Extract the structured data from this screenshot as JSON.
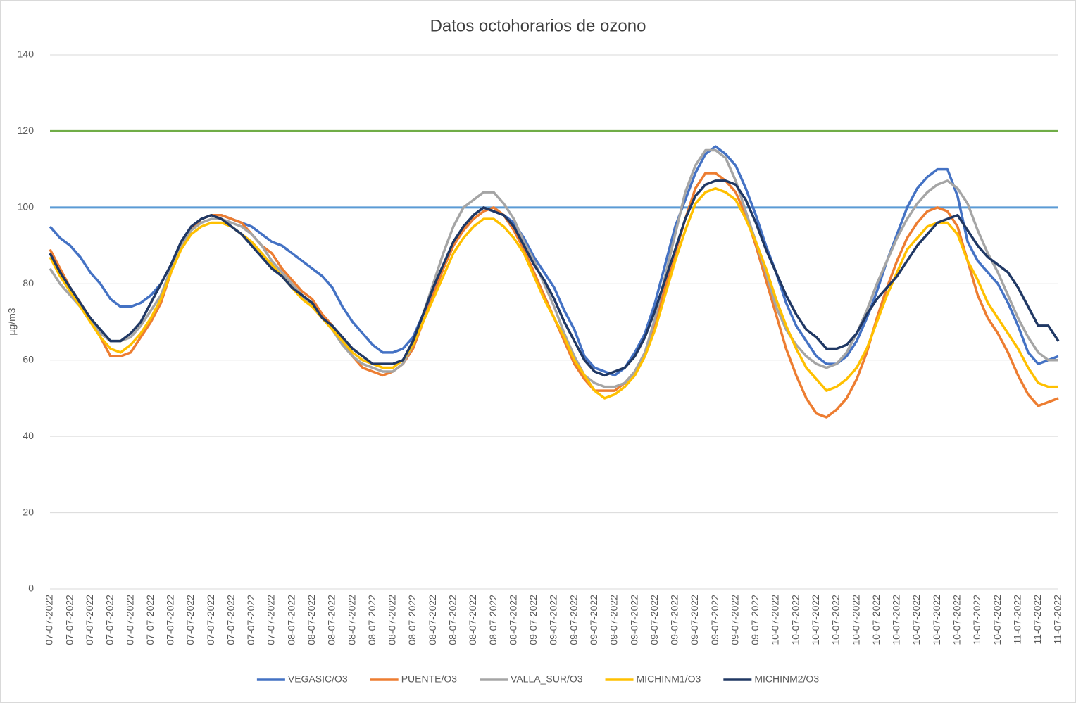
{
  "chart_data": {
    "type": "line",
    "title": "Datos octohorarios de ozono",
    "y_label": "µg/m3",
    "categories": [
      "07-07-2022",
      null,
      "07-07-2022",
      null,
      "07-07-2022",
      null,
      "07-07-2022",
      null,
      "07-07-2022",
      null,
      "07-07-2022",
      null,
      "07-07-2022",
      null,
      "07-07-2022",
      null,
      "07-07-2022",
      null,
      "07-07-2022",
      null,
      "07-07-2022",
      null,
      "07-07-2022",
      null,
      "08-07-2022",
      null,
      "08-07-2022",
      null,
      "08-07-2022",
      null,
      "08-07-2022",
      null,
      "08-07-2022",
      null,
      "08-07-2022",
      null,
      "08-07-2022",
      null,
      "08-07-2022",
      null,
      "08-07-2022",
      null,
      "08-07-2022",
      null,
      "08-07-2022",
      null,
      "08-07-2022",
      null,
      "09-07-2022",
      null,
      "09-07-2022",
      null,
      "09-07-2022",
      null,
      "09-07-2022",
      null,
      "09-07-2022",
      null,
      "09-07-2022",
      null,
      "09-07-2022",
      null,
      "09-07-2022",
      null,
      "09-07-2022",
      null,
      "09-07-2022",
      null,
      "09-07-2022",
      null,
      "09-07-2022",
      null,
      "10-07-2022",
      null,
      "10-07-2022",
      null,
      "10-07-2022",
      null,
      "10-07-2022",
      null,
      "10-07-2022",
      null,
      "10-07-2022",
      null,
      "10-07-2022",
      null,
      "10-07-2022",
      null,
      "10-07-2022",
      null,
      "10-07-2022",
      null,
      "10-07-2022",
      null,
      "10-07-2022",
      null,
      "11-07-2022",
      null,
      "11-07-2022",
      null,
      "11-07-2022"
    ],
    "series": [
      {
        "name": "VEGASIC/O3",
        "color": "#4472c4",
        "values": [
          95,
          92,
          90,
          87,
          83,
          80,
          76,
          74,
          74,
          75,
          77,
          80,
          85,
          91,
          95,
          97,
          98,
          98,
          97,
          96,
          95,
          93,
          91,
          90,
          88,
          86,
          84,
          82,
          79,
          74,
          70,
          67,
          64,
          62,
          62,
          63,
          66,
          72,
          78,
          84,
          90,
          95,
          98,
          100,
          99,
          98,
          96,
          92,
          87,
          83,
          79,
          73,
          68,
          61,
          58,
          57,
          56,
          58,
          62,
          67,
          75,
          85,
          95,
          102,
          109,
          114,
          116,
          114,
          111,
          105,
          98,
          90,
          83,
          75,
          69,
          65,
          61,
          59,
          59,
          61,
          65,
          71,
          78,
          86,
          93,
          100,
          105,
          108,
          110,
          110,
          103,
          91,
          86,
          83,
          80,
          75,
          69,
          62,
          59,
          60,
          61
        ]
      },
      {
        "name": "PUENTE/O3",
        "color": "#ed7d31",
        "values": [
          89,
          84,
          79,
          75,
          71,
          66,
          61,
          61,
          62,
          66,
          70,
          75,
          83,
          90,
          94,
          97,
          98,
          98,
          97,
          96,
          93,
          90,
          88,
          84,
          81,
          78,
          76,
          72,
          69,
          65,
          61,
          58,
          57,
          56,
          57,
          59,
          63,
          70,
          77,
          84,
          90,
          94,
          97,
          99,
          100,
          98,
          94,
          89,
          83,
          77,
          71,
          65,
          59,
          55,
          52,
          52,
          52,
          54,
          57,
          62,
          70,
          79,
          88,
          97,
          105,
          109,
          109,
          107,
          104,
          98,
          90,
          81,
          72,
          63,
          56,
          50,
          46,
          45,
          47,
          50,
          55,
          62,
          71,
          79,
          86,
          92,
          96,
          99,
          100,
          99,
          95,
          86,
          77,
          71,
          67,
          62,
          56,
          51,
          48,
          49,
          50
        ]
      },
      {
        "name": "VALLA_SUR/O3",
        "color": "#a5a5a5",
        "values": [
          84,
          80,
          77,
          74,
          71,
          67,
          65,
          65,
          66,
          69,
          73,
          77,
          84,
          90,
          94,
          96,
          97,
          97,
          96,
          95,
          93,
          90,
          86,
          83,
          80,
          77,
          74,
          71,
          68,
          64,
          61,
          59,
          58,
          57,
          57,
          59,
          64,
          72,
          80,
          88,
          95,
          100,
          102,
          104,
          104,
          101,
          97,
          91,
          86,
          80,
          74,
          67,
          61,
          56,
          54,
          53,
          53,
          54,
          57,
          62,
          71,
          82,
          93,
          104,
          111,
          115,
          115,
          113,
          107,
          99,
          91,
          83,
          74,
          68,
          64,
          61,
          59,
          58,
          59,
          62,
          67,
          73,
          80,
          86,
          92,
          97,
          101,
          104,
          106,
          107,
          105,
          101,
          94,
          88,
          83,
          77,
          71,
          66,
          62,
          60,
          60
        ]
      },
      {
        "name": "MICHINM1/O3",
        "color": "#ffc000",
        "values": [
          87,
          82,
          78,
          74,
          70,
          66,
          63,
          62,
          64,
          67,
          71,
          76,
          83,
          89,
          93,
          95,
          96,
          96,
          95,
          93,
          91,
          88,
          85,
          82,
          79,
          76,
          74,
          71,
          68,
          65,
          62,
          60,
          59,
          58,
          58,
          60,
          64,
          70,
          76,
          82,
          88,
          92,
          95,
          97,
          97,
          95,
          92,
          88,
          82,
          76,
          71,
          66,
          60,
          56,
          52,
          50,
          51,
          53,
          56,
          61,
          68,
          77,
          86,
          94,
          101,
          104,
          105,
          104,
          102,
          97,
          91,
          84,
          76,
          69,
          63,
          58,
          55,
          52,
          53,
          55,
          58,
          63,
          70,
          77,
          83,
          89,
          92,
          95,
          96,
          96,
          93,
          86,
          81,
          75,
          71,
          67,
          63,
          58,
          54,
          53,
          53
        ]
      },
      {
        "name": "MICHINM2/O3",
        "color": "#203864",
        "values": [
          88,
          83,
          79,
          75,
          71,
          68,
          65,
          65,
          67,
          70,
          75,
          80,
          85,
          91,
          95,
          97,
          98,
          97,
          95,
          93,
          90,
          87,
          84,
          82,
          79,
          77,
          75,
          71,
          69,
          66,
          63,
          61,
          59,
          59,
          59,
          60,
          65,
          72,
          79,
          85,
          91,
          95,
          98,
          100,
          99,
          98,
          95,
          90,
          85,
          81,
          76,
          70,
          65,
          60,
          57,
          56,
          57,
          58,
          61,
          66,
          73,
          81,
          89,
          97,
          103,
          106,
          107,
          107,
          106,
          102,
          96,
          89,
          83,
          77,
          72,
          68,
          66,
          63,
          63,
          64,
          67,
          72,
          76,
          79,
          82,
          86,
          90,
          93,
          96,
          97,
          98,
          94,
          90,
          87,
          85,
          83,
          79,
          74,
          69,
          69,
          65
        ]
      }
    ],
    "reference_lines": [
      {
        "value": 120,
        "color": "#70ad47"
      },
      {
        "value": 100,
        "color": "#5b9bd5"
      }
    ],
    "ylim": [
      0,
      140
    ],
    "yticks": [
      0,
      20,
      40,
      60,
      80,
      100,
      120,
      140
    ],
    "grid": true,
    "legend": "bottom"
  }
}
